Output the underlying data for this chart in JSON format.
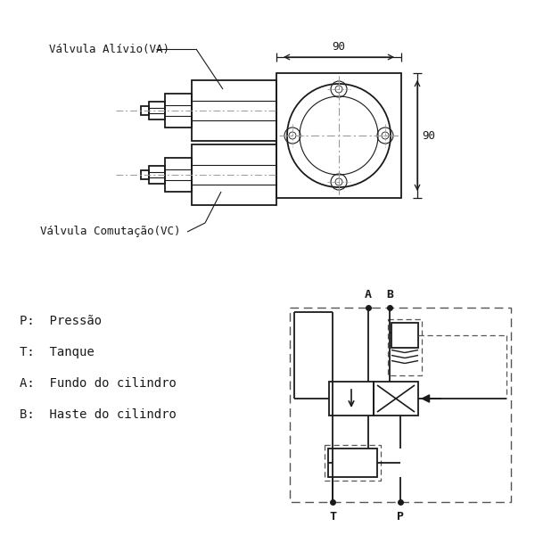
{
  "bg_color": "#ffffff",
  "line_color": "#1a1a1a",
  "labels": {
    "VA": "Válvula Alívio(VA)",
    "VC": "Válvula Comutação(VC)",
    "P": "P:  Pressão",
    "T": "T:  Tanque",
    "A": "A:  Fundo do cilindro",
    "B": "B:  Haste do cilindro"
  },
  "dim_horiz": "90",
  "dim_vert": "90"
}
